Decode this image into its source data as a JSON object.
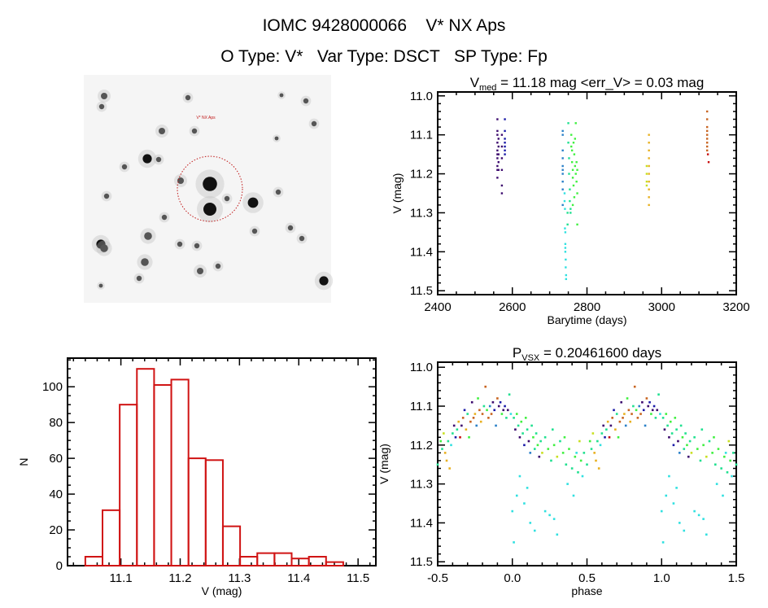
{
  "header": {
    "title": "IOMC 9428000066    V* NX Aps",
    "subtitle": "O Type: V*   Var Type: DSCT   SP Type: Fp"
  },
  "sky_image": {
    "target_label": "V* NX Aps"
  },
  "palette": [
    "#3c0a6e",
    "#1a1aa8",
    "#2a80c8",
    "#30e0e0",
    "#20e090",
    "#40f040",
    "#c8e020",
    "#e8b020",
    "#c86420",
    "#c81010"
  ],
  "chart_data": [
    {
      "type": "scatter",
      "title_main": "V",
      "title_sub": "med",
      "title_rest": " = 11.18 mag <err_V> = 0.03 mag",
      "xlabel": "Barytime (days)",
      "ylabel": "V (mag)",
      "xlim": [
        2400,
        3200
      ],
      "ylim": [
        10.99,
        11.51
      ],
      "y_reversed": true,
      "xticks": [
        2400,
        2600,
        2800,
        3000,
        3200
      ],
      "xtick_labels": [
        "2400",
        "2600",
        "2800",
        "3000",
        "3200"
      ],
      "yticks": [
        11.0,
        11.1,
        11.2,
        11.3,
        11.4,
        11.5
      ],
      "ytick_labels": [
        "11.0",
        "11.1",
        "11.2",
        "11.3",
        "11.4",
        "11.5"
      ],
      "points": [
        [
          2560,
          11.06,
          0
        ],
        [
          2560,
          11.09,
          0
        ],
        [
          2560,
          11.1,
          0
        ],
        [
          2560,
          11.12,
          0
        ],
        [
          2560,
          11.14,
          0
        ],
        [
          2560,
          11.15,
          0
        ],
        [
          2560,
          11.16,
          0
        ],
        [
          2560,
          11.18,
          0
        ],
        [
          2560,
          11.19,
          0
        ],
        [
          2560,
          11.21,
          0
        ],
        [
          2563,
          11.11,
          0
        ],
        [
          2563,
          11.13,
          0
        ],
        [
          2563,
          11.15,
          0
        ],
        [
          2563,
          11.17,
          0
        ],
        [
          2563,
          11.19,
          0
        ],
        [
          2572,
          11.1,
          0
        ],
        [
          2572,
          11.13,
          0
        ],
        [
          2572,
          11.16,
          0
        ],
        [
          2572,
          11.19,
          0
        ],
        [
          2572,
          11.23,
          0
        ],
        [
          2572,
          11.25,
          0
        ],
        [
          2580,
          11.06,
          1
        ],
        [
          2580,
          11.09,
          1
        ],
        [
          2580,
          11.11,
          1
        ],
        [
          2580,
          11.12,
          1
        ],
        [
          2580,
          11.13,
          1
        ],
        [
          2580,
          11.14,
          1
        ],
        [
          2580,
          11.15,
          1
        ],
        [
          2735,
          11.09,
          2
        ],
        [
          2735,
          11.1,
          2
        ],
        [
          2735,
          11.14,
          2
        ],
        [
          2735,
          11.16,
          2
        ],
        [
          2735,
          11.18,
          2
        ],
        [
          2735,
          11.19,
          2
        ],
        [
          2735,
          11.2,
          2
        ],
        [
          2735,
          11.22,
          2
        ],
        [
          2735,
          11.24,
          2
        ],
        [
          2735,
          11.28,
          2
        ],
        [
          2740,
          11.25,
          3
        ],
        [
          2740,
          11.27,
          3
        ],
        [
          2741,
          11.29,
          3
        ],
        [
          2741,
          11.34,
          3
        ],
        [
          2742,
          11.35,
          3
        ],
        [
          2742,
          11.38,
          3
        ],
        [
          2742,
          11.39,
          3
        ],
        [
          2742,
          11.4,
          3
        ],
        [
          2743,
          11.42,
          3
        ],
        [
          2743,
          11.44,
          3
        ],
        [
          2744,
          11.46,
          3
        ],
        [
          2744,
          11.47,
          3
        ],
        [
          2750,
          11.07,
          4
        ],
        [
          2750,
          11.12,
          4
        ],
        [
          2752,
          11.16,
          4
        ],
        [
          2752,
          11.2,
          4
        ],
        [
          2754,
          11.24,
          4
        ],
        [
          2754,
          11.27,
          4
        ],
        [
          2756,
          11.29,
          4
        ],
        [
          2756,
          11.3,
          4
        ],
        [
          2748,
          11.3,
          4
        ],
        [
          2748,
          11.33,
          4
        ],
        [
          2758,
          11.1,
          5
        ],
        [
          2758,
          11.13,
          5
        ],
        [
          2760,
          11.14,
          5
        ],
        [
          2760,
          11.17,
          5
        ],
        [
          2762,
          11.19,
          5
        ],
        [
          2762,
          11.21,
          5
        ],
        [
          2764,
          11.12,
          5
        ],
        [
          2764,
          11.23,
          5
        ],
        [
          2766,
          11.15,
          5
        ],
        [
          2766,
          11.26,
          5
        ],
        [
          2768,
          11.11,
          5
        ],
        [
          2768,
          11.18,
          5
        ],
        [
          2770,
          11.07,
          5
        ],
        [
          2770,
          11.2,
          5
        ],
        [
          2772,
          11.17,
          5
        ],
        [
          2772,
          11.22,
          5
        ],
        [
          2774,
          11.19,
          5
        ],
        [
          2774,
          11.25,
          5
        ],
        [
          2774,
          11.33,
          5
        ],
        [
          2762,
          11.28,
          5
        ],
        [
          2960,
          11.18,
          6
        ],
        [
          2960,
          11.2,
          6
        ],
        [
          2960,
          11.22,
          6
        ],
        [
          2960,
          11.23,
          6
        ],
        [
          2966,
          11.1,
          7
        ],
        [
          2966,
          11.12,
          7
        ],
        [
          2966,
          11.14,
          7
        ],
        [
          2966,
          11.16,
          7
        ],
        [
          2966,
          11.18,
          7
        ],
        [
          2966,
          11.2,
          7
        ],
        [
          2966,
          11.22,
          7
        ],
        [
          2966,
          11.24,
          7
        ],
        [
          2966,
          11.26,
          7
        ],
        [
          2966,
          11.28,
          7
        ],
        [
          3122,
          11.04,
          8
        ],
        [
          3122,
          11.06,
          8
        ],
        [
          3122,
          11.08,
          8
        ],
        [
          3122,
          11.09,
          8
        ],
        [
          3122,
          11.1,
          8
        ],
        [
          3122,
          11.11,
          8
        ],
        [
          3122,
          11.12,
          8
        ],
        [
          3122,
          11.13,
          8
        ],
        [
          3122,
          11.14,
          8
        ],
        [
          3124,
          11.15,
          9
        ],
        [
          3126,
          11.17,
          9
        ]
      ]
    },
    {
      "type": "bar",
      "title": "",
      "xlabel": "V (mag)",
      "ylabel": "N",
      "xlim": [
        11.01,
        11.53
      ],
      "ylim": [
        0,
        116
      ],
      "xticks": [
        11.1,
        11.2,
        11.3,
        11.4,
        11.5
      ],
      "xtick_labels": [
        "11.1",
        "11.2",
        "11.3",
        "11.4",
        "11.5"
      ],
      "yticks": [
        0,
        20,
        40,
        60,
        80,
        100
      ],
      "ytick_labels": [
        "0",
        "20",
        "40",
        "60",
        "80",
        "100"
      ],
      "bin_start": 11.04,
      "bin_width": 0.029,
      "values": [
        5,
        31,
        90,
        110,
        101,
        104,
        60,
        59,
        22,
        5,
        7,
        7,
        4,
        5,
        2
      ]
    },
    {
      "type": "scatter",
      "title_main": "P",
      "title_sub": "VSX",
      "title_rest": " = 0.20461600 days",
      "xlabel": "phase",
      "ylabel": "V (mag)",
      "xlim": [
        -0.5,
        1.5
      ],
      "ylim": [
        10.987,
        11.51
      ],
      "y_reversed": true,
      "period_days": 0.204616,
      "xticks": [
        -0.5,
        0.0,
        0.5,
        1.0,
        1.5
      ],
      "xtick_labels": [
        "-0.5",
        "0.0",
        "0.5",
        "1.0",
        "1.5"
      ],
      "yticks": [
        11.0,
        11.1,
        11.2,
        11.3,
        11.4,
        11.5
      ],
      "ytick_labels": [
        "11.0",
        "11.1",
        "11.2",
        "11.3",
        "11.4",
        "11.5"
      ],
      "points": [
        [
          0.52,
          11.19,
          5
        ],
        [
          0.53,
          11.21,
          4
        ],
        [
          0.54,
          11.17,
          6
        ],
        [
          0.55,
          11.22,
          7
        ],
        [
          0.56,
          11.24,
          7
        ],
        [
          0.57,
          11.19,
          4
        ],
        [
          0.58,
          11.26,
          7
        ],
        [
          0.59,
          11.2,
          3
        ],
        [
          0.6,
          11.17,
          4
        ],
        [
          0.61,
          11.15,
          0
        ],
        [
          0.62,
          11.18,
          1
        ],
        [
          0.63,
          11.16,
          4
        ],
        [
          0.64,
          11.14,
          7
        ],
        [
          0.65,
          11.18,
          9
        ],
        [
          0.66,
          11.15,
          0
        ],
        [
          0.67,
          11.13,
          8
        ],
        [
          0.68,
          11.11,
          1
        ],
        [
          0.69,
          11.16,
          7
        ],
        [
          0.7,
          11.12,
          4
        ],
        [
          0.71,
          11.18,
          5
        ],
        [
          0.72,
          11.14,
          8
        ],
        [
          0.73,
          11.09,
          0
        ],
        [
          0.74,
          11.13,
          8
        ],
        [
          0.75,
          11.12,
          7
        ],
        [
          0.76,
          11.15,
          2
        ],
        [
          0.77,
          11.08,
          5
        ],
        [
          0.78,
          11.11,
          8
        ],
        [
          0.79,
          11.14,
          7
        ],
        [
          0.8,
          11.12,
          8
        ],
        [
          0.81,
          11.1,
          4
        ],
        [
          0.82,
          11.05,
          8
        ],
        [
          0.83,
          11.11,
          5
        ],
        [
          0.84,
          11.13,
          8
        ],
        [
          0.85,
          11.1,
          2
        ],
        [
          0.86,
          11.12,
          8
        ],
        [
          0.87,
          11.09,
          0
        ],
        [
          0.88,
          11.11,
          1
        ],
        [
          0.89,
          11.15,
          2
        ],
        [
          0.9,
          11.08,
          8
        ],
        [
          0.91,
          11.1,
          0
        ],
        [
          0.92,
          11.09,
          1
        ],
        [
          0.93,
          11.12,
          5
        ],
        [
          0.94,
          11.11,
          0
        ],
        [
          0.95,
          11.1,
          1
        ],
        [
          0.96,
          11.13,
          4
        ],
        [
          0.97,
          11.11,
          0
        ],
        [
          0.98,
          11.07,
          4
        ],
        [
          0.99,
          11.12,
          3
        ],
        [
          0.01,
          11.13,
          4
        ],
        [
          0.02,
          11.16,
          0
        ],
        [
          0.03,
          11.12,
          5
        ],
        [
          0.04,
          11.15,
          4
        ],
        [
          0.05,
          11.18,
          0
        ],
        [
          0.06,
          11.14,
          5
        ],
        [
          0.07,
          11.17,
          4
        ],
        [
          0.08,
          11.2,
          1
        ],
        [
          0.09,
          11.13,
          5
        ],
        [
          0.1,
          11.16,
          4
        ],
        [
          0.11,
          11.19,
          0
        ],
        [
          0.12,
          11.22,
          2
        ],
        [
          0.13,
          11.15,
          4
        ],
        [
          0.14,
          11.18,
          5
        ],
        [
          0.15,
          11.21,
          4
        ],
        [
          0.16,
          11.17,
          4
        ],
        [
          0.17,
          11.2,
          5
        ],
        [
          0.18,
          11.23,
          0
        ],
        [
          0.19,
          11.19,
          4
        ],
        [
          0.2,
          11.22,
          6
        ],
        [
          0.22,
          11.18,
          4
        ],
        [
          0.24,
          11.21,
          5
        ],
        [
          0.26,
          11.24,
          4
        ],
        [
          0.28,
          11.2,
          5
        ],
        [
          0.3,
          11.23,
          6
        ],
        [
          0.32,
          11.19,
          4
        ],
        [
          0.34,
          11.22,
          5
        ],
        [
          0.36,
          11.25,
          4
        ],
        [
          0.38,
          11.21,
          5
        ],
        [
          0.4,
          11.26,
          4
        ],
        [
          0.42,
          11.23,
          5
        ],
        [
          0.44,
          11.27,
          4
        ],
        [
          0.46,
          11.24,
          5
        ],
        [
          0.48,
          11.22,
          4
        ],
        [
          0.5,
          11.25,
          4
        ],
        [
          0.35,
          11.18,
          5
        ],
        [
          0.45,
          11.19,
          6
        ],
        [
          0.27,
          11.16,
          4
        ],
        [
          0.0,
          11.37,
          3
        ],
        [
          0.01,
          11.45,
          3
        ],
        [
          0.03,
          11.33,
          3
        ],
        [
          0.05,
          11.28,
          3
        ],
        [
          0.08,
          11.35,
          3
        ],
        [
          0.1,
          11.31,
          3
        ],
        [
          0.12,
          11.4,
          3
        ],
        [
          0.15,
          11.42,
          3
        ],
        [
          0.22,
          11.37,
          3
        ],
        [
          0.25,
          11.38,
          3
        ],
        [
          0.28,
          11.39,
          3
        ],
        [
          0.3,
          11.43,
          3
        ],
        [
          0.37,
          11.3,
          3
        ],
        [
          0.41,
          11.33,
          3
        ],
        [
          0.43,
          11.22,
          3
        ],
        [
          0.47,
          11.28,
          3
        ]
      ]
    }
  ]
}
